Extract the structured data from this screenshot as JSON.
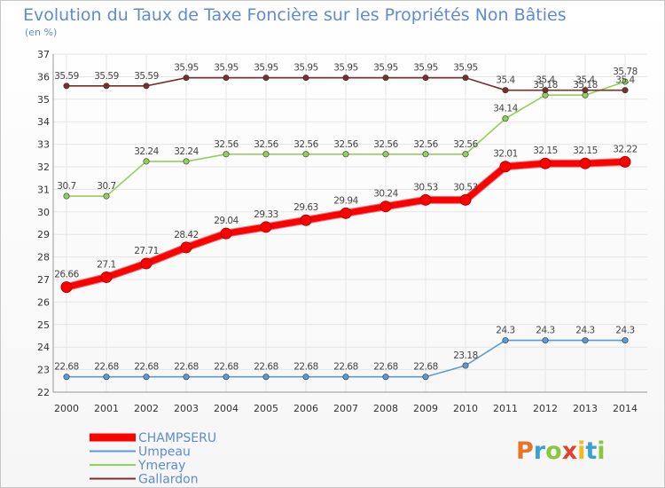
{
  "chart_data": {
    "type": "line",
    "title": "Evolution du Taux de Taxe Foncière sur les Propriétés Non Bâties",
    "subtitle": "(en %)",
    "x": [
      "2000",
      "2001",
      "2002",
      "2003",
      "2004",
      "2005",
      "2006",
      "2007",
      "2008",
      "2009",
      "2010",
      "2011",
      "2012",
      "2013",
      "2014"
    ],
    "ylim": [
      22,
      37
    ],
    "yticks": [
      "22",
      "23",
      "24",
      "25",
      "26",
      "27",
      "28",
      "29",
      "30",
      "31",
      "32",
      "33",
      "34",
      "35",
      "36",
      "37"
    ],
    "grid": true,
    "legend_position": "bottom-left",
    "series": [
      {
        "name": "CHAMPSERU",
        "color": "#ff0000",
        "emphasis": true,
        "values": [
          26.66,
          27.1,
          27.71,
          28.42,
          29.04,
          29.33,
          29.63,
          29.94,
          30.24,
          30.53,
          30.53,
          32.01,
          32.15,
          32.15,
          32.22
        ],
        "labels": [
          "26.66",
          "27.1",
          "27.71",
          "28.42",
          "29.04",
          "29.33",
          "29.63",
          "29.94",
          "30.24",
          "30.53",
          "30.53",
          "32.01",
          "32.15",
          "32.15",
          "32.22"
        ]
      },
      {
        "name": "Umpeau",
        "color": "#5b9bd5",
        "emphasis": false,
        "values": [
          22.68,
          22.68,
          22.68,
          22.68,
          22.68,
          22.68,
          22.68,
          22.68,
          22.68,
          22.68,
          23.18,
          24.3,
          24.3,
          24.3,
          24.3
        ],
        "labels": [
          "22.68",
          "22.68",
          "22.68",
          "22.68",
          "22.68",
          "22.68",
          "22.68",
          "22.68",
          "22.68",
          "22.68",
          "23.18",
          "24.3",
          "24.3",
          "24.3",
          "24.3"
        ]
      },
      {
        "name": "Ymeray",
        "color": "#8fd15a",
        "emphasis": false,
        "values": [
          30.7,
          30.7,
          32.24,
          32.24,
          32.56,
          32.56,
          32.56,
          32.56,
          32.56,
          32.56,
          32.56,
          34.14,
          35.18,
          35.18,
          35.78
        ],
        "labels": [
          "30.7",
          "30.7",
          "32.24",
          "32.24",
          "32.56",
          "32.56",
          "32.56",
          "32.56",
          "32.56",
          "32.56",
          "32.56",
          "34.14",
          "35.18",
          "35.18",
          "35.78"
        ]
      },
      {
        "name": "Gallardon",
        "color": "#7a2e2e",
        "emphasis": false,
        "values": [
          35.59,
          35.59,
          35.59,
          35.95,
          35.95,
          35.95,
          35.95,
          35.95,
          35.95,
          35.95,
          35.95,
          35.4,
          35.4,
          35.4,
          35.4
        ],
        "labels": [
          "35.59",
          "35.59",
          "35.59",
          "35.95",
          "35.95",
          "35.95",
          "35.95",
          "35.95",
          "35.95",
          "35.95",
          "35.95",
          "35.4",
          "35.4",
          "35.4",
          "35.4"
        ]
      }
    ]
  },
  "logo": {
    "letters": [
      "P",
      "r",
      "o",
      "x",
      "i",
      "t",
      "i"
    ],
    "colors": [
      "#e8732a",
      "#3aa0d8",
      "#8cc63f",
      "#e0452b",
      "#f2b81c",
      "#3aa0d8",
      "#8cc63f"
    ]
  }
}
